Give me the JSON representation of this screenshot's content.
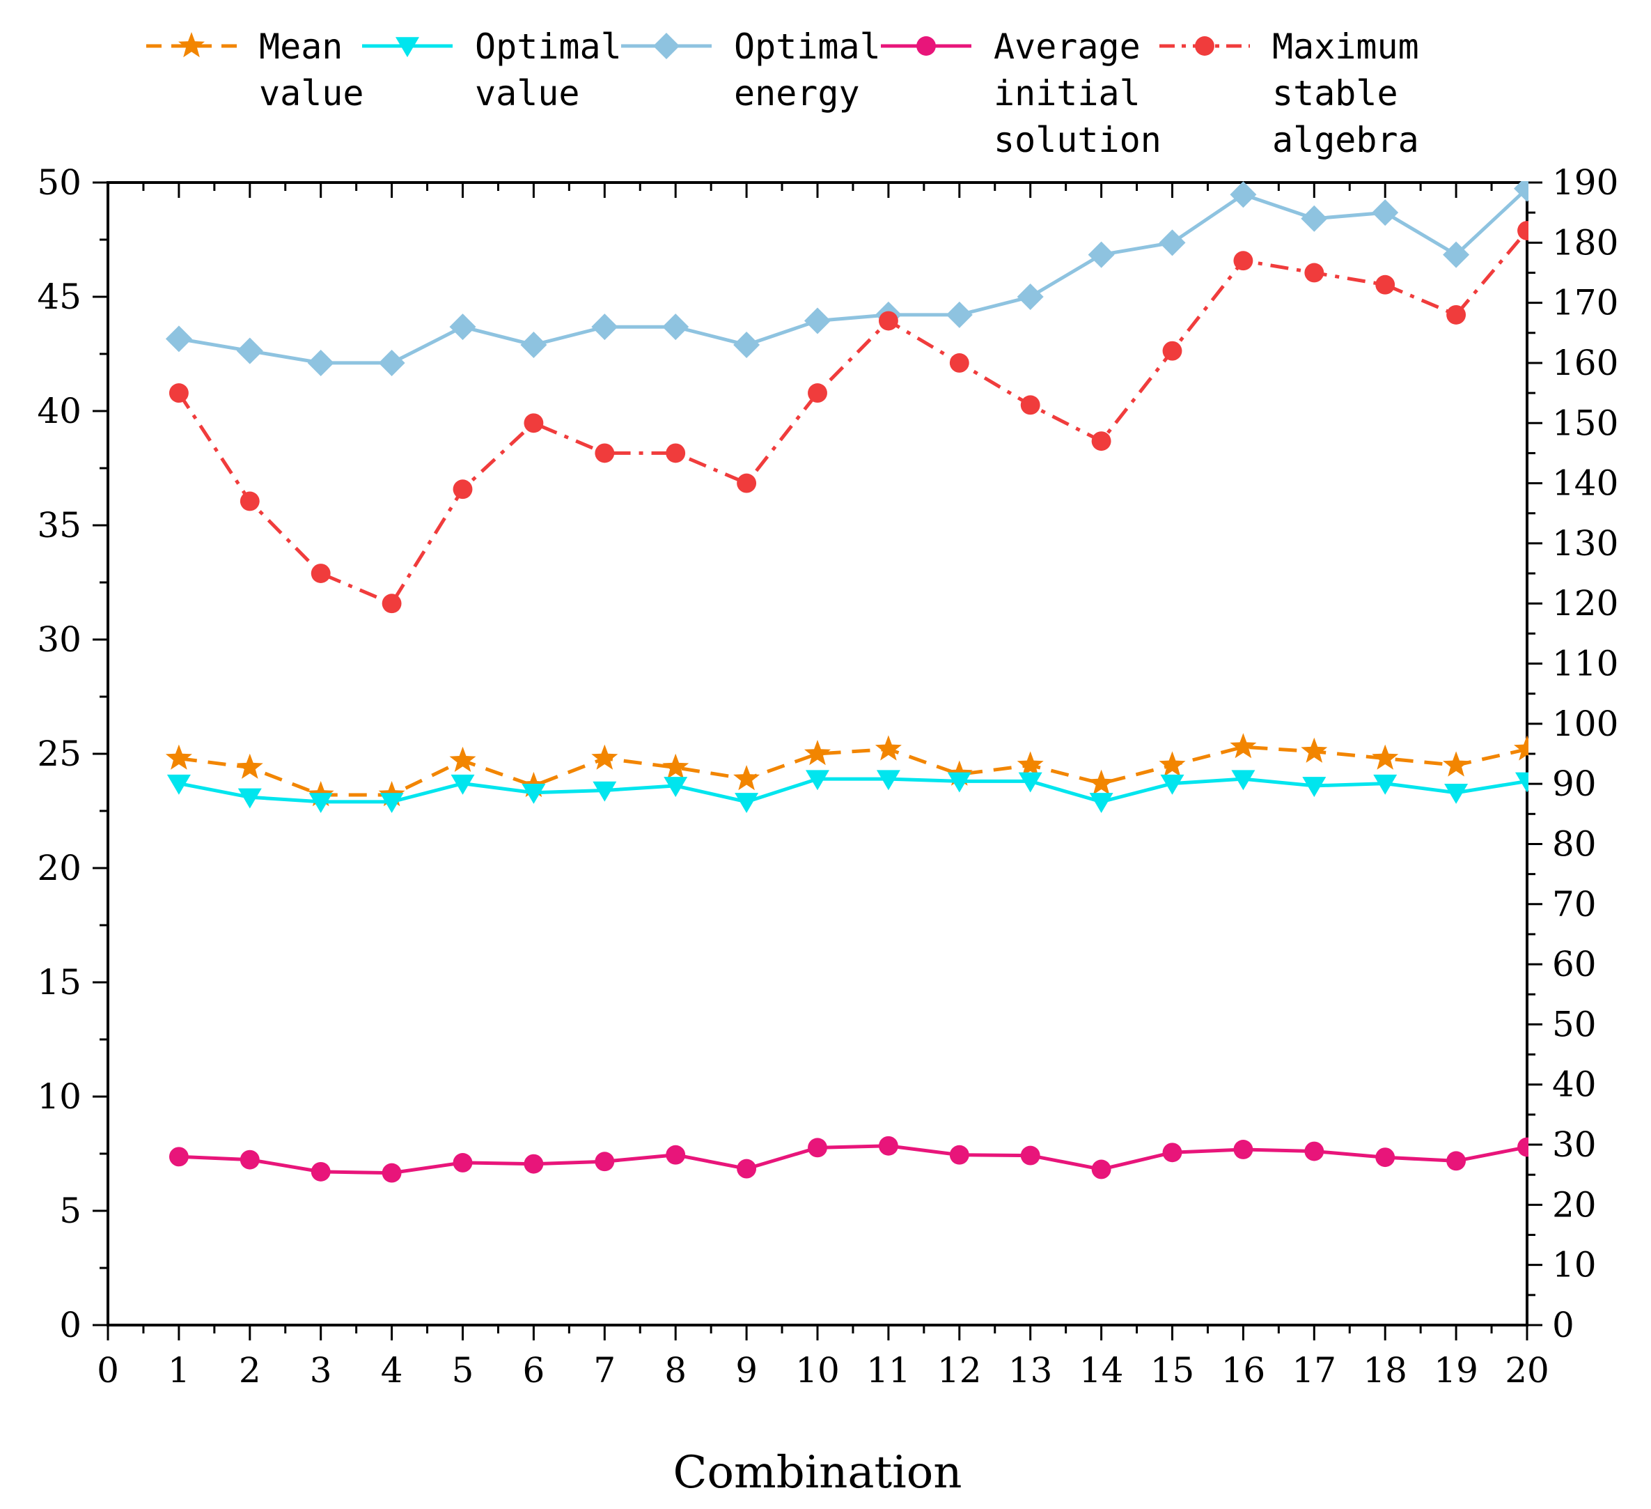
{
  "chart_data": {
    "type": "line",
    "title": "",
    "xlabel": "Combination",
    "ylabel_left": "",
    "ylabel_right": "",
    "x_ticks": [
      "0",
      "1",
      "2",
      "3",
      "4",
      "5",
      "6",
      "7",
      "8",
      "9",
      "10",
      "11",
      "12",
      "13",
      "14",
      "15",
      "16",
      "17",
      "18",
      "19",
      "20"
    ],
    "y_left_ticks": [
      "0",
      "5",
      "10",
      "15",
      "20",
      "25",
      "30",
      "35",
      "40",
      "45",
      "50"
    ],
    "y_right_ticks": [
      "0",
      "10",
      "20",
      "30",
      "40",
      "50",
      "60",
      "70",
      "80",
      "90",
      "100",
      "110",
      "120",
      "130",
      "140",
      "150",
      "160",
      "170",
      "180",
      "190"
    ],
    "xlim": [
      0,
      20
    ],
    "ylim_left": [
      0,
      50
    ],
    "ylim_right": [
      0,
      190
    ],
    "x": [
      1,
      2,
      3,
      4,
      5,
      6,
      7,
      8,
      9,
      10,
      11,
      12,
      13,
      14,
      15,
      16,
      17,
      18,
      19,
      20
    ],
    "series": [
      {
        "name": "Mean value",
        "label_lines": [
          "Mean",
          "value"
        ],
        "axis": "left",
        "color": "#F28500",
        "line_style": "dashed",
        "marker": "star",
        "values": [
          24.8,
          24.4,
          23.2,
          23.2,
          24.7,
          23.6,
          24.8,
          24.4,
          23.9,
          25.0,
          25.2,
          24.1,
          24.5,
          23.7,
          24.5,
          25.3,
          25.1,
          24.8,
          24.5,
          25.2
        ]
      },
      {
        "name": "Optimal value",
        "label_lines": [
          "Optimal",
          "value"
        ],
        "axis": "left",
        "color": "#00E5EE",
        "line_style": "solid",
        "marker": "triangle-down",
        "values": [
          23.7,
          23.1,
          22.9,
          22.9,
          23.7,
          23.3,
          23.4,
          23.6,
          22.9,
          23.9,
          23.9,
          23.8,
          23.8,
          22.9,
          23.7,
          23.9,
          23.6,
          23.7,
          23.3,
          23.8
        ]
      },
      {
        "name": "Optimal energy",
        "label_lines": [
          "Optimal",
          "energy"
        ],
        "axis": "right",
        "color": "#8EC3E0",
        "line_style": "solid",
        "marker": "diamond",
        "values": [
          164,
          162,
          160,
          160,
          166,
          163,
          166,
          166,
          163,
          167,
          168,
          168,
          171,
          178,
          180,
          188,
          184,
          185,
          178,
          189
        ]
      },
      {
        "name": "Average initial solution",
        "label_lines": [
          "Average",
          "initial",
          "solution"
        ],
        "axis": "right",
        "color": "#E8157A",
        "line_style": "solid",
        "marker": "circle",
        "values": [
          28,
          27.5,
          25.5,
          25.3,
          27,
          26.8,
          27.2,
          28.3,
          26,
          29.5,
          29.8,
          28.3,
          28.2,
          25.9,
          28.7,
          29.2,
          28.9,
          27.9,
          27.3,
          29.6
        ]
      },
      {
        "name": "Maximum stable algebra",
        "label_lines": [
          "Maximum",
          "stable",
          "algebra"
        ],
        "axis": "right",
        "color": "#F03C3C",
        "line_style": "dashdot",
        "marker": "circle",
        "values": [
          155,
          137,
          125,
          120,
          139,
          150,
          145,
          145,
          140,
          155,
          167,
          160,
          153,
          147,
          162,
          177,
          175,
          173,
          168,
          182
        ]
      }
    ],
    "legend_position": "top"
  }
}
